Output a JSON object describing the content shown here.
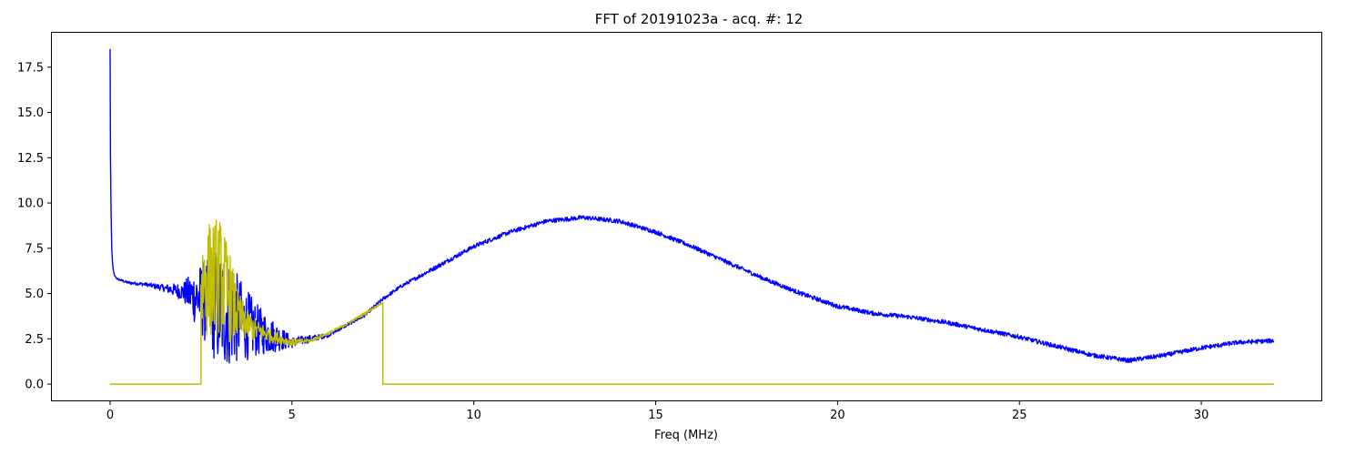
{
  "chart_data": {
    "type": "line",
    "title": "FFT of 20191023a - acq. #: 12",
    "xlabel": "Freq (MHz)",
    "ylabel": "",
    "xlim": [
      -1.6,
      33.3
    ],
    "ylim": [
      -0.9,
      19.4
    ],
    "xticks": [
      0,
      5,
      10,
      15,
      20,
      25,
      30
    ],
    "xtick_labels": [
      "0",
      "5",
      "10",
      "15",
      "20",
      "25",
      "30"
    ],
    "yticks": [
      0,
      2.5,
      5,
      7.5,
      10,
      12.5,
      15,
      17.5
    ],
    "ytick_labels": [
      "0.0",
      "2.5",
      "5.0",
      "7.5",
      "10.0",
      "12.5",
      "15.0",
      "17.5"
    ],
    "grid": false,
    "series": [
      {
        "color": "#0000ff",
        "style": "noisy",
        "x": [
          0,
          0.01,
          0.03,
          0.05,
          0.08,
          0.12,
          0.2,
          0.5,
          1,
          1.5,
          2,
          2.25,
          2.5,
          3,
          4,
          5,
          6,
          7,
          7.5,
          8,
          9,
          10,
          11,
          12,
          13,
          14,
          15,
          16,
          17,
          18,
          19,
          20,
          21,
          22,
          23,
          24,
          25,
          26,
          27,
          28,
          29,
          30,
          31,
          32
        ],
        "y": [
          18.5,
          13.0,
          9.0,
          7.2,
          6.4,
          6.0,
          5.8,
          5.6,
          5.5,
          5.3,
          5.1,
          4.9,
          4.7,
          4.2,
          3.0,
          2.3,
          2.7,
          3.8,
          4.7,
          5.4,
          6.5,
          7.6,
          8.4,
          9.0,
          9.2,
          9.0,
          8.4,
          7.6,
          6.7,
          5.8,
          5.0,
          4.3,
          3.9,
          3.7,
          3.4,
          3.0,
          2.6,
          2.1,
          1.6,
          1.3,
          1.6,
          2.0,
          2.3,
          2.4
        ],
        "noise_amplitude": [
          0,
          0,
          0,
          0,
          0,
          0,
          0.05,
          0.08,
          0.1,
          0.2,
          0.5,
          1.3,
          2.0,
          3.5,
          1.5,
          0.3,
          0.1,
          0.1,
          0.1,
          0.1,
          0.12,
          0.12,
          0.12,
          0.12,
          0.12,
          0.12,
          0.12,
          0.12,
          0.12,
          0.12,
          0.12,
          0.12,
          0.12,
          0.12,
          0.12,
          0.12,
          0.12,
          0.12,
          0.12,
          0.12,
          0.12,
          0.12,
          0.12,
          0.12
        ]
      },
      {
        "color": "#bfbf00",
        "style": "band",
        "x": [
          2.5,
          2.75,
          3,
          3.25,
          3.5,
          3.75,
          4,
          4.5,
          5,
          5.5,
          6,
          6.5,
          7,
          7.5
        ],
        "y": [
          5.5,
          5.8,
          6.0,
          5.0,
          3.8,
          3.3,
          3.0,
          2.6,
          2.3,
          2.4,
          2.8,
          3.3,
          3.9,
          4.5
        ],
        "noise_amplitude": [
          2.8,
          3.3,
          3.3,
          2.7,
          1.5,
          0.9,
          0.6,
          0.35,
          0.2,
          0.1,
          0.08,
          0.08,
          0.08,
          0.05
        ],
        "baseline": 0,
        "baseline_range": [
          0,
          32
        ]
      }
    ]
  }
}
